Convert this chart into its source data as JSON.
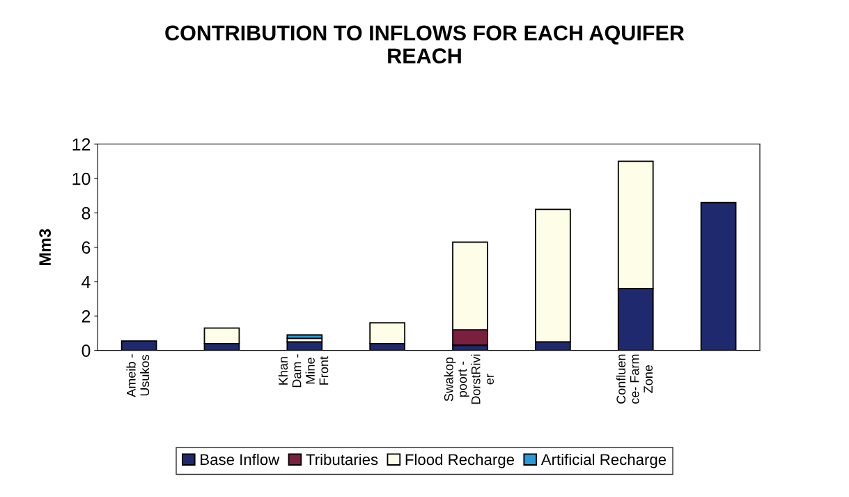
{
  "chart_data": {
    "type": "bar",
    "title": "CONTRIBUTION TO INFLOWS FOR EACH AQUIFER\nREACH",
    "ylabel": "Mm3",
    "categories": [
      "Ameib -\nUsukos",
      null,
      "Khan\nDam -\nMine\nFront",
      null,
      "Swakop\npoort -\nDorstRivi\ner",
      null,
      "Confluen\nce- Farm\nZone",
      null
    ],
    "stacked": true,
    "ylim": [
      0,
      12
    ],
    "yticks": [
      0,
      2,
      4,
      6,
      8,
      10,
      12
    ],
    "grid": false,
    "legend": "bottom",
    "series": [
      {
        "name": "Base Inflow",
        "color": "#1f2a6e",
        "values": [
          0.55,
          0.4,
          0.5,
          0.4,
          0.3,
          0.5,
          3.6,
          8.6
        ]
      },
      {
        "name": "Tributaries",
        "color": "#7b1f3f",
        "values": [
          null,
          null,
          null,
          null,
          0.9,
          null,
          null,
          null
        ]
      },
      {
        "name": "Flood Recharge",
        "color": "#fdfde8",
        "values": [
          null,
          0.9,
          0.2,
          1.2,
          5.1,
          7.7,
          7.4,
          null
        ]
      },
      {
        "name": "Artificial Recharge",
        "color": "#2a9ad8",
        "values": [
          null,
          null,
          0.2,
          null,
          null,
          null,
          null,
          null
        ]
      }
    ]
  }
}
